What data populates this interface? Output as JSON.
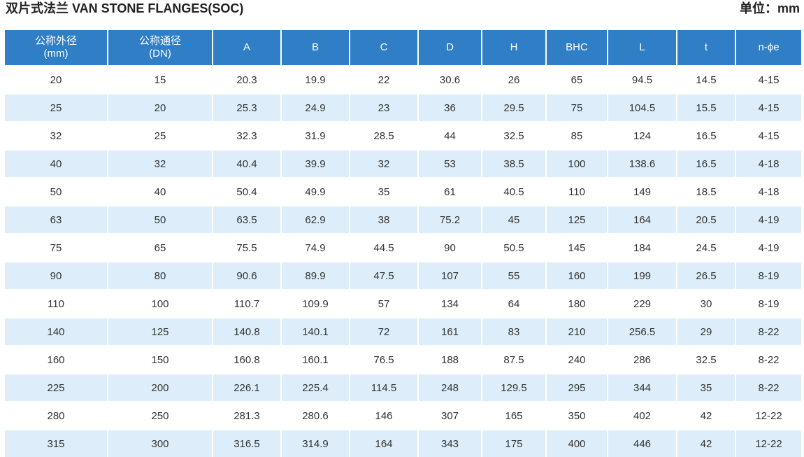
{
  "title": "双片式法兰  VAN STONE FLANGES(SOC)",
  "unit": "单位：mm",
  "headers": [
    [
      "公称外径",
      "(mm)"
    ],
    [
      "公称通径",
      "(DN)"
    ],
    [
      "A"
    ],
    [
      "B"
    ],
    [
      "C"
    ],
    [
      "D"
    ],
    [
      "H"
    ],
    [
      "BHC"
    ],
    [
      "L"
    ],
    [
      "t"
    ],
    [
      "n-ϕe"
    ]
  ],
  "rows": [
    [
      "20",
      "15",
      "20.3",
      "19.9",
      "22",
      "30.6",
      "26",
      "65",
      "94.5",
      "14.5",
      "4-15"
    ],
    [
      "25",
      "20",
      "25.3",
      "24.9",
      "23",
      "36",
      "29.5",
      "75",
      "104.5",
      "15.5",
      "4-15"
    ],
    [
      "32",
      "25",
      "32.3",
      "31.9",
      "28.5",
      "44",
      "32.5",
      "85",
      "124",
      "16.5",
      "4-15"
    ],
    [
      "40",
      "32",
      "40.4",
      "39.9",
      "32",
      "53",
      "38.5",
      "100",
      "138.6",
      "16.5",
      "4-18"
    ],
    [
      "50",
      "40",
      "50.4",
      "49.9",
      "35",
      "61",
      "40.5",
      "110",
      "149",
      "18.5",
      "4-18"
    ],
    [
      "63",
      "50",
      "63.5",
      "62.9",
      "38",
      "75.2",
      "45",
      "125",
      "164",
      "20.5",
      "4-19"
    ],
    [
      "75",
      "65",
      "75.5",
      "74.9",
      "44.5",
      "90",
      "50.5",
      "145",
      "184",
      "24.5",
      "4-19"
    ],
    [
      "90",
      "80",
      "90.6",
      "89.9",
      "47.5",
      "107",
      "55",
      "160",
      "199",
      "26.5",
      "8-19"
    ],
    [
      "110",
      "100",
      "110.7",
      "109.9",
      "57",
      "134",
      "64",
      "180",
      "229",
      "30",
      "8-19"
    ],
    [
      "140",
      "125",
      "140.8",
      "140.1",
      "72",
      "161",
      "83",
      "210",
      "256.5",
      "29",
      "8-22"
    ],
    [
      "160",
      "150",
      "160.8",
      "160.1",
      "76.5",
      "188",
      "87.5",
      "240",
      "286",
      "32.5",
      "8-22"
    ],
    [
      "225",
      "200",
      "226.1",
      "225.4",
      "114.5",
      "248",
      "129.5",
      "295",
      "344",
      "35",
      "8-22"
    ],
    [
      "280",
      "250",
      "281.3",
      "280.6",
      "146",
      "307",
      "165",
      "350",
      "402",
      "42",
      "12-22"
    ],
    [
      "315",
      "300",
      "316.5",
      "314.9",
      "164",
      "343",
      "175",
      "400",
      "446",
      "42",
      "12-22"
    ]
  ],
  "colors": {
    "header_bg": "#2f7ec6",
    "row_alt_bg": "#ddeefa"
  }
}
